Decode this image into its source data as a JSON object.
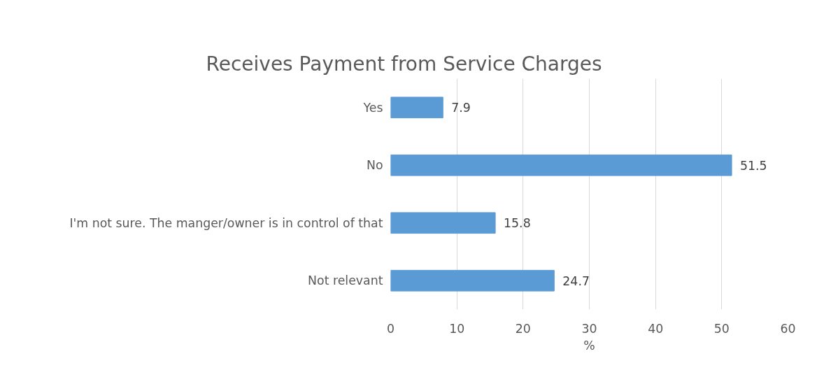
{
  "chart_data": {
    "type": "bar",
    "orientation": "horizontal",
    "title": "Receives Payment from Service Charges",
    "xlabel": "%",
    "categories": [
      "Yes",
      "No",
      "I'm not sure. The manger/owner is in control of that",
      "Not relevant"
    ],
    "values": [
      7.9,
      51.5,
      15.8,
      24.7
    ],
    "color": "#5b9bd5",
    "xlim": [
      0,
      60
    ],
    "xticks": [
      0,
      10,
      20,
      30,
      40,
      50,
      60
    ],
    "grid": "x",
    "data_labels": true
  }
}
